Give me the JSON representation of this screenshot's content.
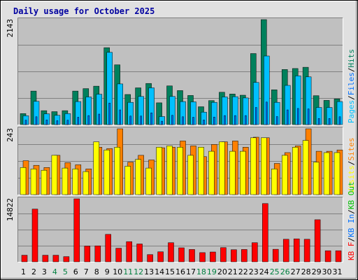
{
  "title": "Daily usage for October 2025",
  "colors": {
    "background": "#e0e0e0",
    "plot": "#c0c0c0",
    "grid": "#808080",
    "title": "#0000a0",
    "pages": "#00c0ff",
    "files": "#0070ff",
    "hits": "#00805c",
    "sites": "#ff8000",
    "visits": "#ffff00",
    "kb_in": "#0070ff",
    "kb_out": "#00c000",
    "kb_f": "#ff0000",
    "weekday_text": "#000000",
    "weekend_text": "#008040"
  },
  "chart_data": [
    {
      "type": "bar",
      "panel": "hits",
      "title": "Daily usage for October 2025",
      "ymax_label": "2143",
      "ylim": [
        0,
        2143
      ],
      "legend": [
        {
          "text": "Pages",
          "color": "#00c0ff"
        },
        {
          "text": "/",
          "color": "#000000"
        },
        {
          "text": "Files",
          "color": "#0070ff"
        },
        {
          "text": "/",
          "color": "#000000"
        },
        {
          "text": "Hits",
          "color": "#00805c"
        }
      ],
      "series": [
        {
          "name": "Hits",
          "color": "#00805c",
          "values": [
            225,
            685,
            285,
            265,
            285,
            685,
            735,
            785,
            1570,
            1220,
            615,
            750,
            840,
            445,
            790,
            695,
            595,
            365,
            490,
            660,
            625,
            600,
            1450,
            2143,
            710,
            1125,
            1145,
            1170,
            590,
            495,
            525
          ]
        },
        {
          "name": "Pages",
          "color": "#00c0ff",
          "values": [
            180,
            475,
            220,
            190,
            225,
            470,
            565,
            620,
            1475,
            830,
            455,
            575,
            750,
            165,
            575,
            470,
            465,
            255,
            455,
            565,
            570,
            545,
            860,
            1400,
            455,
            800,
            995,
            975,
            350,
            350,
            470
          ]
        },
        {
          "name": "Files",
          "color": "#0070ff",
          "values": [
            90,
            160,
            95,
            80,
            90,
            150,
            185,
            215,
            440,
            300,
            175,
            175,
            240,
            70,
            190,
            160,
            150,
            95,
            155,
            185,
            185,
            185,
            350,
            460,
            165,
            300,
            330,
            320,
            125,
            125,
            160
          ]
        }
      ]
    },
    {
      "type": "bar",
      "panel": "visits",
      "ymax_label": "243",
      "ylim": [
        0,
        243
      ],
      "legend": [
        {
          "text": "Visits",
          "color": "#ffff00"
        },
        {
          "text": "/",
          "color": "#000000"
        },
        {
          "text": "Sites",
          "color": "#ff8000"
        }
      ],
      "series": [
        {
          "name": "Visits",
          "color": "#ffff00",
          "values": [
            100,
            95,
            90,
            145,
            98,
            95,
            85,
            195,
            165,
            175,
            105,
            130,
            98,
            175,
            180,
            175,
            145,
            175,
            160,
            195,
            160,
            160,
            210,
            210,
            95,
            145,
            175,
            200,
            120,
            155,
            155
          ]
        },
        {
          "name": "Sites",
          "color": "#ff8000",
          "values": [
            125,
            108,
            100,
            145,
            118,
            110,
            95,
            175,
            170,
            243,
            120,
            145,
            128,
            173,
            175,
            198,
            180,
            140,
            185,
            195,
            198,
            175,
            212,
            210,
            115,
            155,
            180,
            243,
            160,
            160,
            165
          ]
        }
      ]
    },
    {
      "type": "bar",
      "panel": "kbytes",
      "ymax_label": "14822",
      "ylim": [
        0,
        14822
      ],
      "legend": [
        {
          "text": "KB F",
          "color": "#ff0000"
        },
        {
          "text": "/",
          "color": "#000000"
        },
        {
          "text": "KB In",
          "color": "#0070ff"
        },
        {
          "text": "/",
          "color": "#000000"
        },
        {
          "text": "KB Out",
          "color": "#00c000"
        }
      ],
      "series": [
        {
          "name": "KB F",
          "color": "#ff0000",
          "values": [
            1550,
            12400,
            1550,
            1550,
            1220,
            14822,
            3700,
            3750,
            6450,
            3200,
            4750,
            4200,
            1700,
            2350,
            4500,
            3300,
            2900,
            2150,
            2300,
            3350,
            2850,
            2900,
            4500,
            13700,
            2950,
            5300,
            5400,
            5300,
            9900,
            2600,
            2600
          ]
        }
      ]
    }
  ],
  "days": [
    {
      "label": "1",
      "weekend": false
    },
    {
      "label": "2",
      "weekend": false
    },
    {
      "label": "3",
      "weekend": false
    },
    {
      "label": "4",
      "weekend": true
    },
    {
      "label": "5",
      "weekend": true
    },
    {
      "label": "6",
      "weekend": false
    },
    {
      "label": "7",
      "weekend": false
    },
    {
      "label": "8",
      "weekend": false
    },
    {
      "label": "9",
      "weekend": false
    },
    {
      "label": "10",
      "weekend": false
    },
    {
      "label": "11",
      "weekend": true
    },
    {
      "label": "12",
      "weekend": true
    },
    {
      "label": "13",
      "weekend": false
    },
    {
      "label": "14",
      "weekend": false
    },
    {
      "label": "15",
      "weekend": false
    },
    {
      "label": "16",
      "weekend": false
    },
    {
      "label": "17",
      "weekend": false
    },
    {
      "label": "18",
      "weekend": true
    },
    {
      "label": "19",
      "weekend": true
    },
    {
      "label": "20",
      "weekend": false
    },
    {
      "label": "21",
      "weekend": false
    },
    {
      "label": "22",
      "weekend": false
    },
    {
      "label": "23",
      "weekend": false
    },
    {
      "label": "24",
      "weekend": false
    },
    {
      "label": "25",
      "weekend": true
    },
    {
      "label": "26",
      "weekend": true
    },
    {
      "label": "27",
      "weekend": false
    },
    {
      "label": "28",
      "weekend": false
    },
    {
      "label": "29",
      "weekend": false
    },
    {
      "label": "30",
      "weekend": false
    },
    {
      "label": "31",
      "weekend": false
    }
  ]
}
